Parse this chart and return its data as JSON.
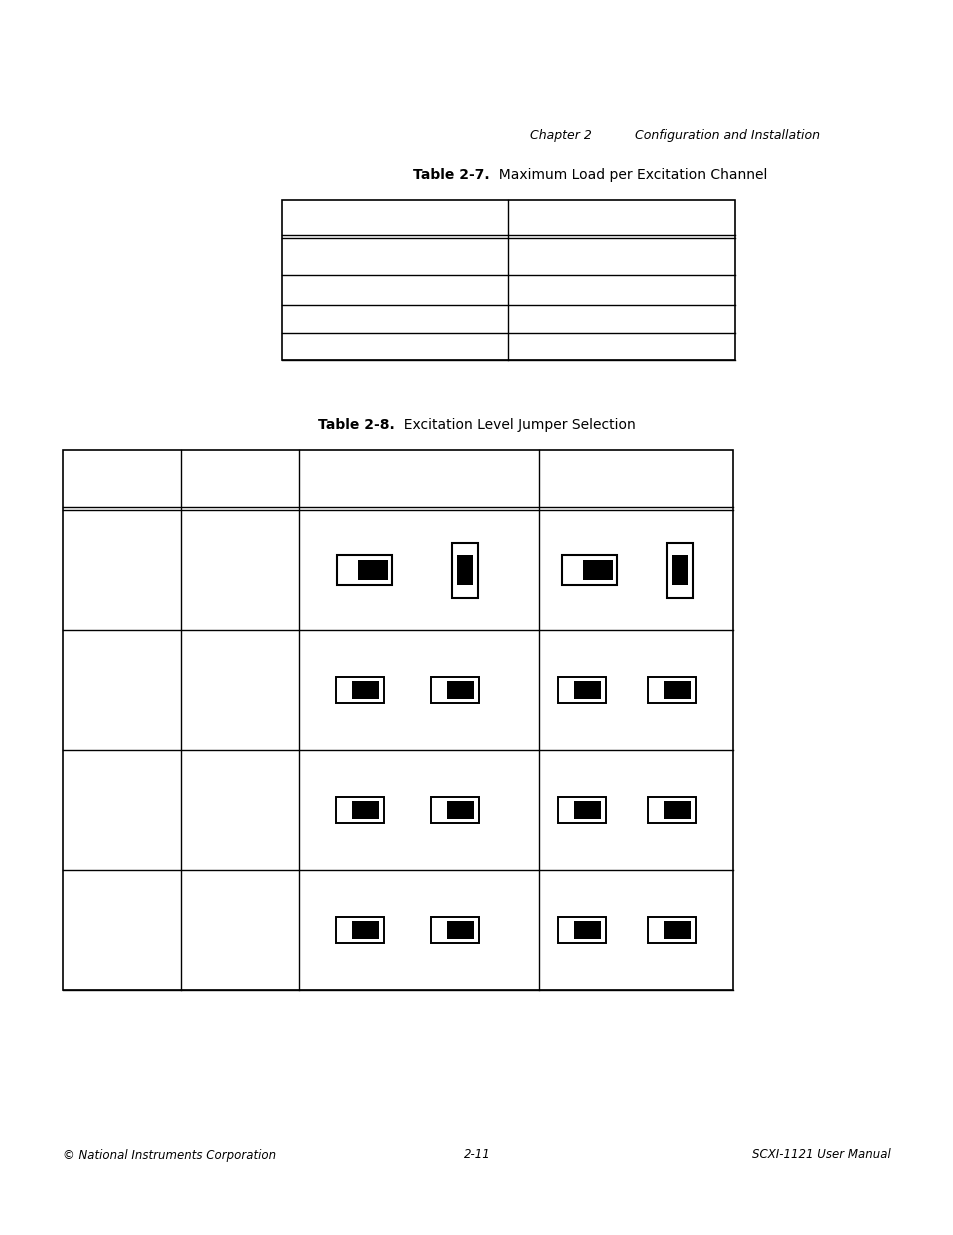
{
  "page_header_left": "Chapter 2",
  "page_header_right": "Configuration and Installation",
  "table1_title_bold": "Table 2-7.",
  "table1_title_rest": "  Maximum Load per Excitation Channel",
  "table2_title_bold": "Table 2-8.",
  "table2_title_rest": "  Excitation Level Jumper Selection",
  "footer_left": "© National Instruments Corporation",
  "footer_center": "2-11",
  "footer_right": "SCXI-1121 User Manual",
  "bg_color": "#ffffff"
}
